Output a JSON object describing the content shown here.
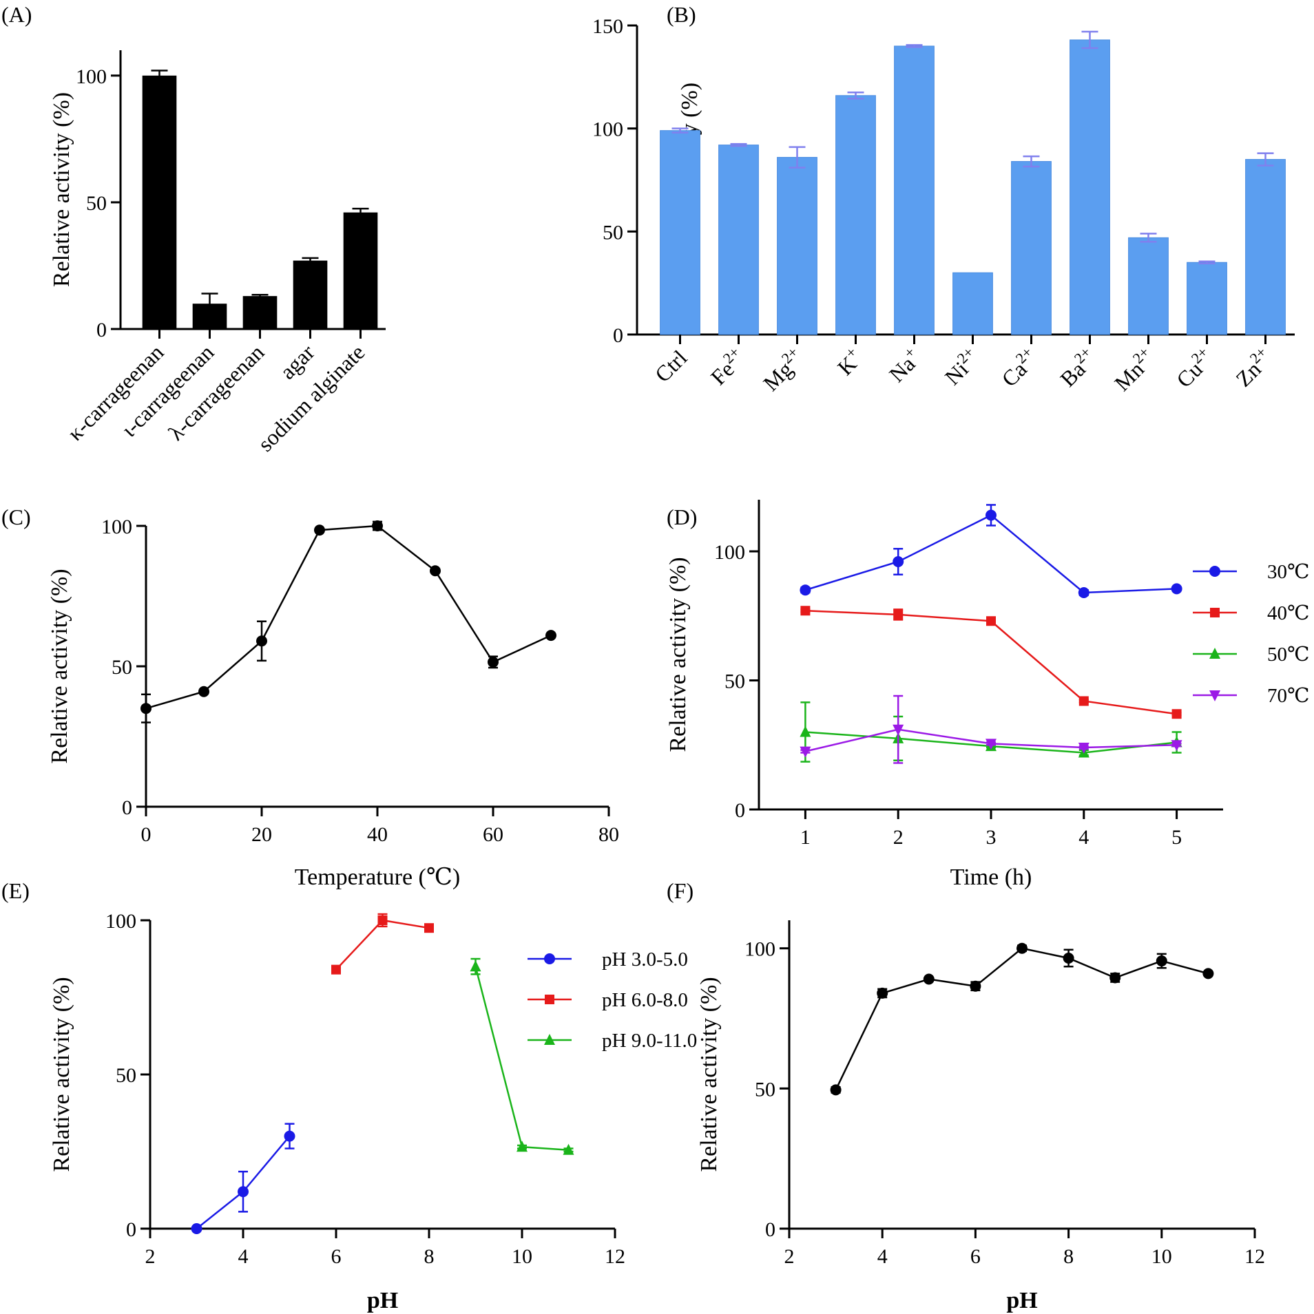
{
  "chart_data": [
    {
      "panel": "(A)",
      "type": "bar",
      "ylabel": "Relative activity (%)",
      "ylim": [
        0,
        110
      ],
      "yticks": [
        0,
        50,
        100
      ],
      "categories": [
        "κ-carrageenan",
        "ι-carrageenan",
        "λ-carrageenan",
        "agar",
        "sodium alginate"
      ],
      "values": [
        100,
        10,
        13,
        27,
        46
      ],
      "errors": [
        2,
        4,
        0.5,
        1,
        1.5
      ],
      "color": "#000000"
    },
    {
      "panel": "(B)",
      "type": "bar",
      "ylabel": "Relative activity (%)",
      "ylim": [
        0,
        150
      ],
      "yticks": [
        0,
        50,
        100,
        150
      ],
      "categories": [
        {
          "base": "Ctrl",
          "sup": ""
        },
        {
          "base": "Fe",
          "sup": "2+"
        },
        {
          "base": "Mg",
          "sup": "2+"
        },
        {
          "base": "K",
          "sup": "+"
        },
        {
          "base": "Na",
          "sup": "+"
        },
        {
          "base": "Ni",
          "sup": "2+"
        },
        {
          "base": "Ca",
          "sup": "2+"
        },
        {
          "base": "Ba",
          "sup": "2+"
        },
        {
          "base": "Mn",
          "sup": "2+"
        },
        {
          "base": "Cu",
          "sup": "2+"
        },
        {
          "base": "Zn",
          "sup": "2+"
        }
      ],
      "values": [
        99,
        92,
        86,
        116,
        140,
        30,
        84,
        143,
        47,
        35,
        85
      ],
      "errors": [
        1,
        0.5,
        5,
        1.5,
        0.5,
        0,
        2.5,
        4,
        2,
        0.5,
        3
      ],
      "color": "#5b9ef0"
    },
    {
      "panel": "(C)",
      "type": "line",
      "xlabel": "Temperature (℃)",
      "ylabel": "Relative activity (%)",
      "xlim": [
        0,
        80
      ],
      "ylim": [
        0,
        100
      ],
      "xticks": [
        0,
        20,
        40,
        60,
        80
      ],
      "yticks": [
        0,
        50,
        100
      ],
      "series": [
        {
          "name": "",
          "color": "#000000",
          "marker": "circle",
          "x": [
            0,
            10,
            20,
            30,
            40,
            50,
            60,
            70
          ],
          "y": [
            35,
            41,
            59,
            98.5,
            100,
            84,
            51.5,
            61
          ],
          "err": [
            5,
            0.5,
            7,
            0.5,
            1.5,
            0.5,
            2,
            0
          ]
        }
      ]
    },
    {
      "panel": "(D)",
      "type": "line",
      "xlabel": "Time (h)",
      "ylabel": "Relative activity (%)",
      "xlim": [
        0.5,
        5.5
      ],
      "ylim": [
        0,
        120
      ],
      "xticks": [
        1,
        2,
        3,
        4,
        5
      ],
      "yticks": [
        0,
        50,
        100
      ],
      "legend": "right",
      "series": [
        {
          "name": "30℃",
          "color": "#1a1ae6",
          "marker": "circle",
          "x": [
            1,
            2,
            3,
            4,
            5
          ],
          "y": [
            85,
            96,
            114,
            84,
            85.5
          ],
          "err": [
            1,
            5,
            4,
            1,
            0.5
          ]
        },
        {
          "name": "40℃",
          "color": "#e61a1a",
          "marker": "square",
          "x": [
            1,
            2,
            3,
            4,
            5
          ],
          "y": [
            77,
            75.5,
            73,
            42,
            37
          ],
          "err": [
            0.5,
            2,
            0.5,
            0.5,
            0.5
          ]
        },
        {
          "name": "50℃",
          "color": "#1ab41a",
          "marker": "triangle",
          "x": [
            1,
            2,
            3,
            4,
            5
          ],
          "y": [
            30,
            27.5,
            24.5,
            22,
            26
          ],
          "err": [
            11.5,
            8.5,
            0.5,
            1,
            4
          ]
        },
        {
          "name": "70℃",
          "color": "#9b1ae6",
          "marker": "triangle-down",
          "x": [
            1,
            2,
            3,
            4,
            5
          ],
          "y": [
            22.5,
            31,
            25.5,
            24,
            25
          ],
          "err": [
            0.5,
            13,
            0.5,
            0.5,
            0.5
          ]
        }
      ]
    },
    {
      "panel": "(E)",
      "type": "line",
      "xlabel": "pH",
      "ylabel": "Relative activity (%)",
      "xlim": [
        2,
        12
      ],
      "ylim": [
        0,
        100
      ],
      "xticks": [
        2,
        4,
        6,
        8,
        10,
        12
      ],
      "yticks": [
        0,
        50,
        100
      ],
      "legend": "upper-right",
      "series": [
        {
          "name": "pH 3.0-5.0",
          "color": "#1a1ae6",
          "marker": "circle",
          "x": [
            3,
            4,
            5
          ],
          "y": [
            0,
            12,
            30
          ],
          "err": [
            0,
            6.5,
            4
          ]
        },
        {
          "name": "pH 6.0-8.0",
          "color": "#e61a1a",
          "marker": "square",
          "x": [
            6,
            7,
            8
          ],
          "y": [
            84,
            100,
            97.5
          ],
          "err": [
            0.5,
            2,
            0.5
          ]
        },
        {
          "name": "pH 9.0-11.0",
          "color": "#1ab41a",
          "marker": "triangle",
          "x": [
            9,
            10,
            11
          ],
          "y": [
            85,
            26.5,
            25.5
          ],
          "err": [
            2.5,
            0.5,
            0.5
          ]
        }
      ]
    },
    {
      "panel": "(F)",
      "type": "line",
      "xlabel": "pH",
      "ylabel": "Relative activity (%)",
      "xlim": [
        2,
        12
      ],
      "ylim": [
        0,
        110
      ],
      "xticks": [
        2,
        4,
        6,
        8,
        10,
        12
      ],
      "yticks": [
        0,
        50,
        100
      ],
      "series": [
        {
          "name": "",
          "color": "#000000",
          "marker": "circle",
          "x": [
            3,
            4,
            5,
            6,
            7,
            8,
            9,
            10,
            11
          ],
          "y": [
            49.5,
            84,
            89,
            86.5,
            100,
            96.5,
            89.5,
            95.5,
            91
          ],
          "err": [
            1,
            1.5,
            0.5,
            1.5,
            1,
            3,
            1.5,
            2.5,
            0
          ]
        }
      ]
    }
  ]
}
